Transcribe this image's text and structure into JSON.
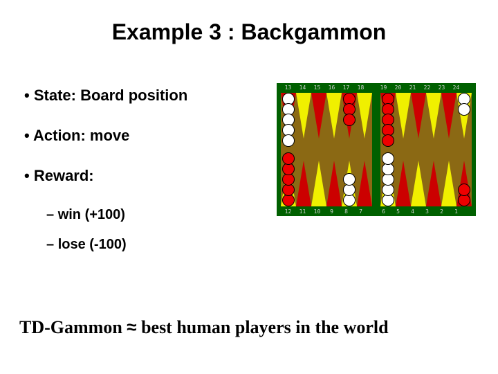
{
  "title": "Example 3 : Backgammon",
  "bullets": {
    "state": "State: Board position",
    "action": "Action: move",
    "reward": "Reward:",
    "win": "win (+100)",
    "lose": "lose (-100)"
  },
  "footer": {
    "td": "TD-Gammon ",
    "approx": "≈",
    "rest": " best human players in the world"
  },
  "board": {
    "top_labels": [
      "13",
      "14",
      "15",
      "16",
      "17",
      "18",
      "",
      "19",
      "20",
      "21",
      "22",
      "23",
      "24"
    ],
    "bot_labels": [
      "12",
      "11",
      "10",
      "9",
      "8",
      "7",
      "",
      "6",
      "5",
      "4",
      "3",
      "2",
      "1"
    ],
    "triangle_colors_top_left": [
      "red",
      "yel",
      "red",
      "yel",
      "red",
      "yel"
    ],
    "triangle_colors_top_right": [
      "red",
      "yel",
      "red",
      "yel",
      "red",
      "yel"
    ],
    "triangle_colors_bot_left": [
      "yel",
      "red",
      "yel",
      "red",
      "yel",
      "red"
    ],
    "triangle_colors_bot_right": [
      "yel",
      "red",
      "yel",
      "red",
      "yel",
      "red"
    ],
    "checkers": [
      {
        "half": "left",
        "side": "top",
        "point": 0,
        "count": 5,
        "color": "w"
      },
      {
        "half": "left",
        "side": "top",
        "point": 4,
        "count": 3,
        "color": "r"
      },
      {
        "half": "right",
        "side": "top",
        "point": 0,
        "count": 5,
        "color": "r"
      },
      {
        "half": "right",
        "side": "top",
        "point": 5,
        "count": 2,
        "color": "w"
      },
      {
        "half": "left",
        "side": "bot",
        "point": 0,
        "count": 5,
        "color": "r"
      },
      {
        "half": "left",
        "side": "bot",
        "point": 4,
        "count": 3,
        "color": "w"
      },
      {
        "half": "right",
        "side": "bot",
        "point": 0,
        "count": 5,
        "color": "w"
      },
      {
        "half": "right",
        "side": "bot",
        "point": 5,
        "count": 2,
        "color": "r"
      }
    ],
    "colors": {
      "frame": "#006000",
      "wood": "#8b6914",
      "tri_red": "#cc0000",
      "tri_yellow": "#f0f000",
      "checker_white": "#ffffff",
      "checker_red": "#ee0000"
    }
  }
}
